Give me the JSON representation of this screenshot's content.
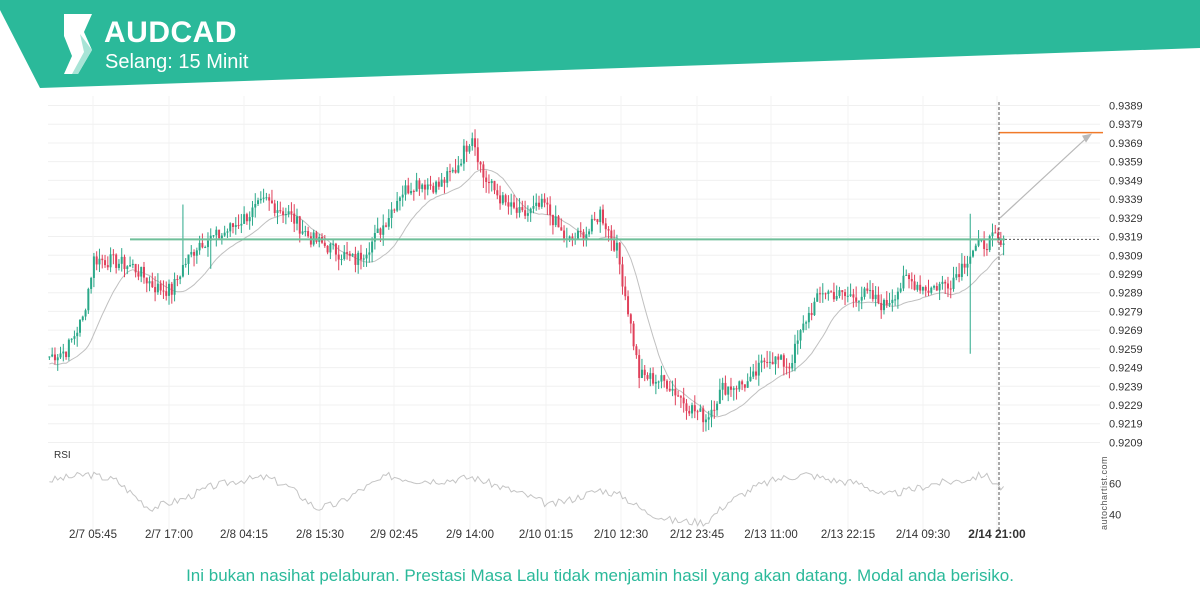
{
  "header": {
    "symbol": "AUDCAD",
    "interval": "Selang: 15 Minit",
    "brand_color": "#2bb99a"
  },
  "watermark": "autochartist.com",
  "disclaimer": "Ini bukan nasihat pelaburan. Prestasi Masa Lalu tidak menjamin hasil yang akan datang. Modal anda berisiko.",
  "chart_data": [
    {
      "type": "candlestick",
      "title": "",
      "ylim": [
        0.9204,
        0.9394
      ],
      "y_ticks": [
        "0.9389",
        "0.9379",
        "0.9369",
        "0.9359",
        "0.9349",
        "0.9339",
        "0.9329",
        "0.9319",
        "0.9309",
        "0.9299",
        "0.9289",
        "0.9279",
        "0.9269",
        "0.9259",
        "0.9249",
        "0.9239",
        "0.9229",
        "0.9219",
        "0.9209"
      ],
      "x_tick_labels": [
        "2/7 05:45",
        "2/7 17:00",
        "2/8 04:15",
        "2/8 15:30",
        "2/9 02:45",
        "2/9 14:00",
        "2/10 01:15",
        "2/10 12:30",
        "2/12 23:45",
        "2/13 11:00",
        "2/13 22:15",
        "2/14 09:30",
        "2/14 21:00"
      ],
      "current_time_label": "2/14 21:00",
      "grid": true,
      "support_resistance_level": 0.93175,
      "current_price": 0.93175,
      "forecast_target": 0.93745,
      "colors": {
        "up": "#2aa889",
        "down": "#e0405a",
        "level": "#6fbf9a",
        "target": "#f07a2a",
        "moving_average": "#c0c0c0"
      },
      "price_anchor_points": [
        {
          "x": 0,
          "y": 0.9255
        },
        {
          "x": 6,
          "y": 0.9258
        },
        {
          "x": 12,
          "y": 0.9275
        },
        {
          "x": 16,
          "y": 0.9307
        },
        {
          "x": 22,
          "y": 0.9306
        },
        {
          "x": 30,
          "y": 0.9303
        },
        {
          "x": 38,
          "y": 0.9292
        },
        {
          "x": 44,
          "y": 0.929
        },
        {
          "x": 48,
          "y": 0.9303
        },
        {
          "x": 54,
          "y": 0.9316
        },
        {
          "x": 62,
          "y": 0.932
        },
        {
          "x": 70,
          "y": 0.9329
        },
        {
          "x": 78,
          "y": 0.9338
        },
        {
          "x": 86,
          "y": 0.9331
        },
        {
          "x": 94,
          "y": 0.9318
        },
        {
          "x": 102,
          "y": 0.9312
        },
        {
          "x": 110,
          "y": 0.9306
        },
        {
          "x": 116,
          "y": 0.9316
        },
        {
          "x": 120,
          "y": 0.9325
        },
        {
          "x": 126,
          "y": 0.9342
        },
        {
          "x": 132,
          "y": 0.9348
        },
        {
          "x": 140,
          "y": 0.9346
        },
        {
          "x": 146,
          "y": 0.9355
        },
        {
          "x": 152,
          "y": 0.9374
        },
        {
          "x": 156,
          "y": 0.9351
        },
        {
          "x": 164,
          "y": 0.9336
        },
        {
          "x": 170,
          "y": 0.933
        },
        {
          "x": 178,
          "y": 0.9336
        },
        {
          "x": 186,
          "y": 0.9316
        },
        {
          "x": 194,
          "y": 0.9322
        },
        {
          "x": 198,
          "y": 0.9332
        },
        {
          "x": 204,
          "y": 0.9312
        },
        {
          "x": 208,
          "y": 0.928
        },
        {
          "x": 212,
          "y": 0.9245
        },
        {
          "x": 222,
          "y": 0.9241
        },
        {
          "x": 230,
          "y": 0.9228
        },
        {
          "x": 236,
          "y": 0.9222
        },
        {
          "x": 242,
          "y": 0.9238
        },
        {
          "x": 252,
          "y": 0.9241
        },
        {
          "x": 258,
          "y": 0.9255
        },
        {
          "x": 266,
          "y": 0.925
        },
        {
          "x": 272,
          "y": 0.9275
        },
        {
          "x": 278,
          "y": 0.929
        },
        {
          "x": 286,
          "y": 0.9287
        },
        {
          "x": 294,
          "y": 0.9288
        },
        {
          "x": 300,
          "y": 0.9282
        },
        {
          "x": 308,
          "y": 0.9296
        },
        {
          "x": 316,
          "y": 0.9291
        },
        {
          "x": 324,
          "y": 0.9295
        },
        {
          "x": 332,
          "y": 0.9312
        },
        {
          "x": 340,
          "y": 0.9318
        },
        {
          "x": 343,
          "y": 0.9312
        }
      ]
    },
    {
      "type": "line",
      "title": "RSI",
      "ylim": [
        30,
        80
      ],
      "y_ticks": [
        "60",
        "40"
      ],
      "rsi_anchor_points": [
        {
          "x": 0,
          "y": 62
        },
        {
          "x": 14,
          "y": 66
        },
        {
          "x": 24,
          "y": 62
        },
        {
          "x": 36,
          "y": 44
        },
        {
          "x": 48,
          "y": 50
        },
        {
          "x": 58,
          "y": 58
        },
        {
          "x": 68,
          "y": 62
        },
        {
          "x": 78,
          "y": 64
        },
        {
          "x": 86,
          "y": 58
        },
        {
          "x": 96,
          "y": 44
        },
        {
          "x": 104,
          "y": 47
        },
        {
          "x": 112,
          "y": 56
        },
        {
          "x": 122,
          "y": 65
        },
        {
          "x": 132,
          "y": 62
        },
        {
          "x": 142,
          "y": 62
        },
        {
          "x": 152,
          "y": 64
        },
        {
          "x": 162,
          "y": 58
        },
        {
          "x": 172,
          "y": 52
        },
        {
          "x": 180,
          "y": 46
        },
        {
          "x": 188,
          "y": 50
        },
        {
          "x": 198,
          "y": 56
        },
        {
          "x": 206,
          "y": 52
        },
        {
          "x": 214,
          "y": 42
        },
        {
          "x": 224,
          "y": 36
        },
        {
          "x": 236,
          "y": 35
        },
        {
          "x": 244,
          "y": 48
        },
        {
          "x": 254,
          "y": 58
        },
        {
          "x": 262,
          "y": 63
        },
        {
          "x": 272,
          "y": 66
        },
        {
          "x": 282,
          "y": 62
        },
        {
          "x": 292,
          "y": 60
        },
        {
          "x": 300,
          "y": 52
        },
        {
          "x": 310,
          "y": 56
        },
        {
          "x": 318,
          "y": 60
        },
        {
          "x": 328,
          "y": 62
        },
        {
          "x": 336,
          "y": 66
        },
        {
          "x": 343,
          "y": 56
        }
      ]
    }
  ]
}
